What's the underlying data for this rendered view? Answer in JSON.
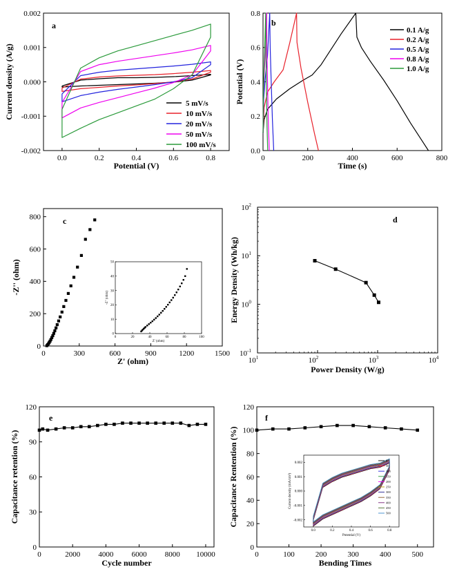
{
  "chart_data": [
    {
      "panel": "a",
      "type": "line",
      "xlabel": "Potential (V)",
      "ylabel": "Current density (A/g)",
      "xlim": [
        -0.1,
        0.9
      ],
      "ylim": [
        -0.002,
        0.002
      ],
      "xticks": [
        0.0,
        0.2,
        0.4,
        0.6,
        0.8
      ],
      "xtick_labels": [
        "0.0",
        "0.2",
        "0.4",
        "0.6",
        "0.8"
      ],
      "yticks": [
        -0.002,
        -0.001,
        0.0,
        0.001,
        0.002
      ],
      "ytick_labels": [
        "-0.002",
        "-0.001",
        "0.000",
        "0.001",
        "0.002"
      ],
      "legend_position": "bottom-right",
      "series": [
        {
          "name": "5 mV/s",
          "color": "#000000",
          "x": [
            0.0,
            0.1,
            0.2,
            0.3,
            0.4,
            0.5,
            0.6,
            0.7,
            0.8,
            0.8,
            0.7,
            0.6,
            0.5,
            0.4,
            0.3,
            0.2,
            0.1,
            0.0,
            0.0
          ],
          "y": [
            -0.00012,
            5e-05,
            9e-05,
            0.00012,
            0.00012,
            0.00013,
            0.00015,
            0.00018,
            0.00022,
            0.0002,
            5e-05,
            -1e-05,
            -4e-05,
            -6e-05,
            -8e-05,
            -0.0001,
            -0.00012,
            -0.00015,
            -0.00012
          ]
        },
        {
          "name": "10 mV/s",
          "color": "#e8202a",
          "x": [
            0.0,
            0.1,
            0.2,
            0.3,
            0.4,
            0.5,
            0.6,
            0.7,
            0.8,
            0.8,
            0.7,
            0.6,
            0.5,
            0.4,
            0.3,
            0.2,
            0.1,
            0.0,
            0.0
          ],
          "y": [
            -0.00018,
            8e-05,
            0.00014,
            0.00017,
            0.00019,
            0.00021,
            0.00024,
            0.00028,
            0.00033,
            0.00028,
            8e-05,
            0.0,
            -5e-05,
            -9e-05,
            -0.00012,
            -0.00016,
            -0.0002,
            -0.00028,
            -0.00018
          ]
        },
        {
          "name": "20 mV/s",
          "color": "#2222dd",
          "x": [
            0.0,
            0.1,
            0.2,
            0.3,
            0.4,
            0.5,
            0.6,
            0.7,
            0.8,
            0.8,
            0.7,
            0.6,
            0.5,
            0.4,
            0.3,
            0.2,
            0.1,
            0.0,
            0.0
          ],
          "y": [
            -0.00035,
            0.00018,
            0.00028,
            0.00034,
            0.00038,
            0.00042,
            0.00046,
            0.00051,
            0.00058,
            0.0005,
            0.00012,
            0.0,
            -8e-05,
            -0.00015,
            -0.00022,
            -0.0003,
            -0.0004,
            -0.00058,
            -0.00035
          ]
        },
        {
          "name": "50 mV/s",
          "color": "#ee00ee",
          "x": [
            0.0,
            0.1,
            0.2,
            0.3,
            0.4,
            0.5,
            0.6,
            0.7,
            0.8,
            0.8,
            0.7,
            0.6,
            0.5,
            0.4,
            0.3,
            0.2,
            0.1,
            0.0,
            0.0
          ],
          "y": [
            -0.0006,
            0.0003,
            0.0005,
            0.0006,
            0.00068,
            0.00076,
            0.00084,
            0.00093,
            0.00106,
            0.0009,
            0.0002,
            -2e-05,
            -0.00018,
            -0.00032,
            -0.00046,
            -0.0006,
            -0.00076,
            -0.00105,
            -0.0006
          ]
        },
        {
          "name": "100 mV/s",
          "color": "#2a9a3a",
          "x": [
            0.0,
            0.1,
            0.2,
            0.3,
            0.4,
            0.5,
            0.6,
            0.7,
            0.8,
            0.8,
            0.7,
            0.6,
            0.5,
            0.4,
            0.3,
            0.2,
            0.1,
            0.0,
            0.0
          ],
          "y": [
            -0.0008,
            0.0004,
            0.0007,
            0.0009,
            0.00105,
            0.0012,
            0.00135,
            0.0015,
            0.00168,
            0.0013,
            0.0002,
            -0.0002,
            -0.0005,
            -0.0007,
            -0.0009,
            -0.0011,
            -0.00135,
            -0.00162,
            -0.0008
          ]
        }
      ]
    },
    {
      "panel": "b",
      "type": "line",
      "xlabel": "Time (s)",
      "ylabel": "Potential (V)",
      "xlim": [
        0,
        800
      ],
      "ylim": [
        0.0,
        0.8
      ],
      "xticks": [
        0,
        200,
        400,
        600,
        800
      ],
      "xtick_labels": [
        "0",
        "200",
        "400",
        "600",
        "800"
      ],
      "yticks": [
        0.0,
        0.2,
        0.4,
        0.6,
        0.8
      ],
      "ytick_labels": [
        "0.0",
        "0.2",
        "0.4",
        "0.6",
        "0.8"
      ],
      "legend_position": "top-right",
      "series": [
        {
          "name": "0.1 A/g",
          "color": "#000000",
          "x": [
            0,
            5,
            20,
            60,
            120,
            180,
            220,
            260,
            300,
            350,
            415,
            420,
            440,
            480,
            540,
            600,
            660,
            710,
            740
          ],
          "y": [
            0.1,
            0.18,
            0.24,
            0.3,
            0.36,
            0.41,
            0.44,
            0.5,
            0.58,
            0.68,
            0.8,
            0.66,
            0.6,
            0.52,
            0.41,
            0.29,
            0.16,
            0.06,
            0.0
          ]
        },
        {
          "name": "0.2 A/g",
          "color": "#e8202a",
          "x": [
            0,
            5,
            20,
            50,
            90,
            120,
            150,
            152,
            170,
            200,
            230,
            248
          ],
          "y": [
            0.1,
            0.25,
            0.34,
            0.4,
            0.47,
            0.63,
            0.8,
            0.63,
            0.48,
            0.28,
            0.1,
            0.0
          ]
        },
        {
          "name": "0.5 A/g",
          "color": "#2222dd",
          "x": [
            0,
            3,
            10,
            20,
            30,
            32,
            36,
            42,
            48
          ],
          "y": [
            0.1,
            0.3,
            0.42,
            0.55,
            0.8,
            0.6,
            0.42,
            0.18,
            0.0
          ]
        },
        {
          "name": "0.8 A/g",
          "color": "#ee00ee",
          "x": [
            0,
            2,
            6,
            12,
            16,
            17,
            20,
            24,
            28
          ],
          "y": [
            0.1,
            0.32,
            0.46,
            0.62,
            0.8,
            0.6,
            0.4,
            0.15,
            0.0
          ]
        },
        {
          "name": "1.0 A/g",
          "color": "#2a9a3a",
          "x": [
            0,
            2,
            5,
            9,
            12,
            13,
            15,
            18,
            21
          ],
          "y": [
            0.1,
            0.34,
            0.5,
            0.66,
            0.8,
            0.58,
            0.38,
            0.14,
            0.0
          ]
        }
      ]
    },
    {
      "panel": "c",
      "type": "scatter",
      "xlabel": "Z' (ohm)",
      "ylabel": "-Z'' (ohm)",
      "xlim": [
        0,
        1500
      ],
      "ylim": [
        0,
        850
      ],
      "xticks": [
        0,
        300,
        600,
        900,
        1200,
        1500
      ],
      "xtick_labels": [
        "0",
        "300",
        "600",
        "900",
        "1200",
        "1500"
      ],
      "yticks": [
        0,
        200,
        400,
        600,
        800
      ],
      "ytick_labels": [
        "0",
        "200",
        "400",
        "600",
        "800"
      ],
      "series": [
        {
          "color": "#000000",
          "x": [
            28,
            35,
            42,
            48,
            55,
            62,
            70,
            78,
            86,
            95,
            105,
            115,
            127,
            140,
            155,
            170,
            188,
            208,
            230,
            255,
            285,
            318,
            352,
            390,
            430
          ],
          "y": [
            2,
            8,
            14,
            22,
            30,
            40,
            52,
            64,
            78,
            94,
            112,
            132,
            155,
            180,
            210,
            244,
            282,
            325,
            372,
            425,
            488,
            560,
            660,
            720,
            780
          ]
        }
      ],
      "inset": {
        "xlabel": "Z' (ohm)",
        "ylabel": "-Z'' (ohm)",
        "xlim": [
          0,
          100
        ],
        "ylim": [
          0,
          50
        ],
        "xticks": [
          0,
          20,
          40,
          60,
          80,
          100
        ],
        "xtick_labels": [
          "0",
          "20",
          "40",
          "60",
          "80",
          "100"
        ],
        "yticks": [
          0,
          10,
          20,
          30,
          40,
          50
        ],
        "ytick_labels": [
          "0",
          "10",
          "20",
          "30",
          "40",
          "50"
        ],
        "x": [
          30,
          31,
          32,
          33,
          34,
          35,
          37,
          39,
          41,
          43,
          45,
          47,
          49,
          51,
          53,
          55,
          57,
          59,
          61,
          63,
          65,
          67,
          69,
          71,
          73,
          75,
          77,
          79,
          81,
          83
        ],
        "y": [
          1.5,
          2.2,
          2.8,
          3.4,
          4.0,
          4.6,
          5.6,
          6.6,
          7.6,
          8.6,
          9.7,
          10.8,
          12.0,
          13.2,
          14.5,
          15.8,
          17.2,
          18.6,
          20.1,
          21.7,
          23.3,
          25.0,
          26.8,
          28.7,
          30.7,
          32.8,
          35.0,
          37.4,
          40.0,
          45.0
        ]
      }
    },
    {
      "panel": "d",
      "type": "line",
      "xlabel": "Power Density (W/g)",
      "ylabel": "Energy Density (Wh/kg)",
      "xscale": "log",
      "yscale": "log",
      "xlim": [
        10,
        10000
      ],
      "ylim": [
        0.1,
        100
      ],
      "xticks": [
        10,
        100,
        1000,
        10000
      ],
      "yticks": [
        0.1,
        1,
        10,
        100
      ],
      "x": [
        90,
        200,
        640,
        880,
        1040
      ],
      "y": [
        7.9,
        5.3,
        2.8,
        1.55,
        1.1
      ]
    },
    {
      "panel": "e",
      "type": "line",
      "xlabel": "Cycle number",
      "ylabel": "Capacitance retention (%)",
      "xlim": [
        0,
        10500
      ],
      "ylim": [
        0,
        120
      ],
      "xticks": [
        0,
        2000,
        4000,
        6000,
        8000,
        10000
      ],
      "xtick_labels": [
        "0",
        "2000",
        "4000",
        "6000",
        "8000",
        "10000"
      ],
      "yticks": [
        0,
        30,
        60,
        90,
        120
      ],
      "ytick_labels": [
        "0",
        "30",
        "60",
        "90",
        "120"
      ],
      "x": [
        0,
        200,
        500,
        1000,
        1500,
        2000,
        2500,
        3000,
        3500,
        4000,
        4500,
        5000,
        5500,
        6000,
        6500,
        7000,
        7500,
        8000,
        8500,
        9000,
        9500,
        10000
      ],
      "y": [
        100,
        101,
        100,
        101,
        102,
        102,
        103,
        103,
        104,
        105,
        105,
        106,
        106,
        106,
        106,
        106,
        106,
        106,
        106,
        104,
        105,
        105
      ]
    },
    {
      "panel": "f",
      "type": "line",
      "xlabel": "Bending Times",
      "ylabel": "Capacitance Rentention (%)",
      "xlim": [
        0,
        550
      ],
      "ylim": [
        0,
        120
      ],
      "xticks": [
        0,
        100,
        200,
        300,
        400,
        500
      ],
      "xtick_labels": [
        "0",
        "100",
        "200",
        "300",
        "400",
        "500"
      ],
      "yticks": [
        0,
        20,
        40,
        60,
        80,
        100,
        120
      ],
      "ytick_labels": [
        "0",
        "20",
        "40",
        "60",
        "80",
        "100",
        "120"
      ],
      "x": [
        0,
        50,
        100,
        150,
        200,
        250,
        300,
        350,
        400,
        450,
        500
      ],
      "y": [
        100,
        101,
        101,
        102,
        103,
        104,
        104,
        103,
        102,
        101,
        100
      ],
      "inset": {
        "xlabel": "Potential (V)",
        "ylabel": "Current density (mA/cm²)",
        "xlim": [
          -0.1,
          0.9
        ],
        "ylim": [
          -0.0025,
          0.0025
        ],
        "xticks": [
          0.0,
          0.2,
          0.4,
          0.6,
          0.8
        ],
        "xtick_labels": [
          "0.0",
          "0.2",
          "0.4",
          "0.6",
          "0.8"
        ],
        "yticks": [
          -0.002,
          -0.001,
          0.0,
          0.001,
          0.002
        ],
        "ytick_labels": [
          "-0.002",
          "-0.001",
          "0.000",
          "0.001",
          "0.002"
        ],
        "legend": [
          "0",
          "50",
          "100",
          "150",
          "200",
          "250",
          "300",
          "350",
          "400",
          "450",
          "500"
        ],
        "colors": [
          "#000000",
          "#e8202a",
          "#2222dd",
          "#2a9a3a",
          "#ee00ee",
          "#b0a000",
          "#1f1f8f",
          "#8a5a2b",
          "#7a1f7a",
          "#4c6c2c",
          "#3a88cc"
        ],
        "x": [
          0.0,
          0.1,
          0.2,
          0.3,
          0.4,
          0.5,
          0.6,
          0.7,
          0.8,
          0.8,
          0.7,
          0.6,
          0.5,
          0.4,
          0.3,
          0.2,
          0.1,
          0.0,
          0.0
        ],
        "y": [
          -0.0019,
          0.0004,
          0.0008,
          0.0011,
          0.0013,
          0.0015,
          0.0017,
          0.0018,
          0.0021,
          0.0016,
          0.0003,
          -0.0002,
          -0.0006,
          -0.0009,
          -0.0012,
          -0.0015,
          -0.0018,
          -0.0023,
          -0.0019
        ]
      }
    }
  ]
}
